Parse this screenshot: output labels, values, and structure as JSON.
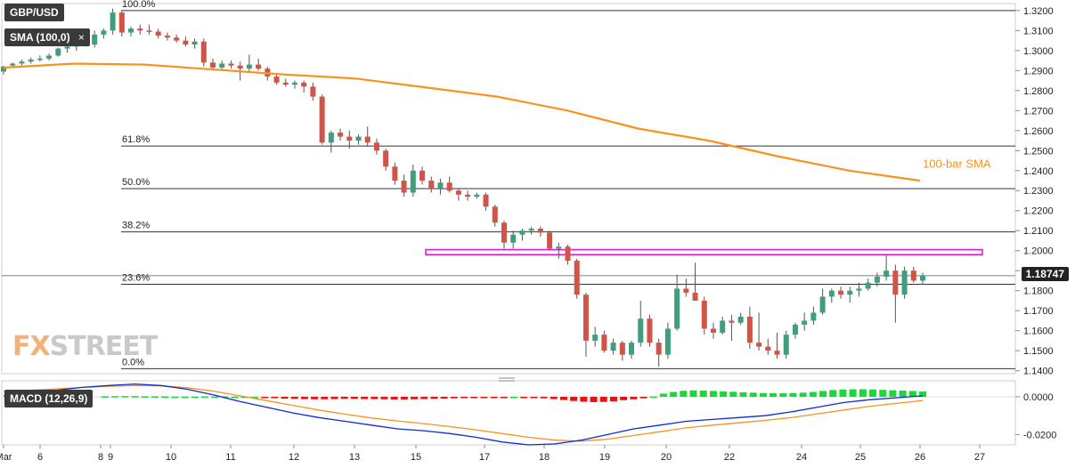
{
  "chart_data": [
    {
      "type": "candlestick",
      "title": "GBP/USD",
      "indicator_label": "SMA (100,0)",
      "annotation": "100-bar SMA",
      "current_price": "1.18747",
      "y_ticks": [
        "1.3200",
        "1.3100",
        "1.3000",
        "1.2900",
        "1.2800",
        "1.2700",
        "1.2600",
        "1.2500",
        "1.2400",
        "1.2300",
        "1.2200",
        "1.2100",
        "1.2000",
        "1.1900",
        "1.1800",
        "1.1700",
        "1.1600",
        "1.1500",
        "1.1400"
      ],
      "ylim": [
        1.1385,
        1.3235
      ],
      "x_ticks": [
        "Mar",
        "6",
        "8",
        "9",
        "10",
        "11",
        "12",
        "13",
        "15",
        "17",
        "18",
        "19",
        "20",
        "22",
        "24",
        "25",
        "26",
        "27"
      ],
      "fib_levels": [
        {
          "label": "100.0%",
          "value": 1.32
        },
        {
          "label": "61.8%",
          "value": 1.2523
        },
        {
          "label": "50.0%",
          "value": 1.231
        },
        {
          "label": "38.2%",
          "value": 1.2094
        },
        {
          "label": "23.6%",
          "value": 1.1832
        },
        {
          "label": "0.0%",
          "value": 1.141
        }
      ],
      "resistance_zone": [
        1.198,
        1.2005
      ],
      "candles": [
        [
          1.2895,
          1.2925,
          1.288,
          1.292
        ],
        [
          1.2925,
          1.294,
          1.2915,
          1.2935
        ],
        [
          1.2935,
          1.2955,
          1.2925,
          1.2945
        ],
        [
          1.2945,
          1.2965,
          1.2935,
          1.2955
        ],
        [
          1.2955,
          1.2975,
          1.2945,
          1.296
        ],
        [
          1.296,
          1.2985,
          1.295,
          1.2975
        ],
        [
          1.2975,
          1.3015,
          1.297,
          1.301
        ],
        [
          1.301,
          1.304,
          1.299,
          1.302
        ],
        [
          1.302,
          1.306,
          1.3,
          1.305
        ],
        [
          1.305,
          1.307,
          1.302,
          1.303
        ],
        [
          1.303,
          1.31,
          1.3015,
          1.308
        ],
        [
          1.308,
          1.311,
          1.306,
          1.31
        ],
        [
          1.31,
          1.321,
          1.308,
          1.319
        ],
        [
          1.319,
          1.32,
          1.307,
          1.309
        ],
        [
          1.309,
          1.312,
          1.307,
          1.311
        ],
        [
          1.311,
          1.313,
          1.308,
          1.31
        ],
        [
          1.31,
          1.313,
          1.308,
          1.3095
        ],
        [
          1.3095,
          1.311,
          1.306,
          1.3075
        ],
        [
          1.3075,
          1.309,
          1.305,
          1.3065
        ],
        [
          1.3065,
          1.308,
          1.304,
          1.305
        ],
        [
          1.305,
          1.307,
          1.302,
          1.303
        ],
        [
          1.303,
          1.306,
          1.301,
          1.3045
        ],
        [
          1.3045,
          1.306,
          1.292,
          1.294
        ],
        [
          1.294,
          1.296,
          1.29,
          1.2915
        ],
        [
          1.2915,
          1.295,
          1.29,
          1.2935
        ],
        [
          1.2935,
          1.295,
          1.291,
          1.2925
        ],
        [
          1.2925,
          1.2945,
          1.285,
          1.291
        ],
        [
          1.291,
          1.298,
          1.289,
          1.293
        ],
        [
          1.293,
          1.296,
          1.29,
          1.291
        ],
        [
          1.291,
          1.292,
          1.285,
          1.287
        ],
        [
          1.287,
          1.288,
          1.283,
          1.284
        ],
        [
          1.284,
          1.286,
          1.282,
          1.283
        ],
        [
          1.283,
          1.285,
          1.281,
          1.284
        ],
        [
          1.284,
          1.285,
          1.279,
          1.282
        ],
        [
          1.282,
          1.284,
          1.275,
          1.277
        ],
        [
          1.277,
          1.278,
          1.253,
          1.254
        ],
        [
          1.254,
          1.26,
          1.249,
          1.259
        ],
        [
          1.259,
          1.261,
          1.255,
          1.257
        ],
        [
          1.257,
          1.26,
          1.251,
          1.255
        ],
        [
          1.255,
          1.258,
          1.253,
          1.257
        ],
        [
          1.257,
          1.262,
          1.252,
          1.254
        ],
        [
          1.254,
          1.256,
          1.248,
          1.25
        ],
        [
          1.25,
          1.251,
          1.24,
          1.242
        ],
        [
          1.242,
          1.244,
          1.233,
          1.235
        ],
        [
          1.235,
          1.238,
          1.227,
          1.229
        ],
        [
          1.229,
          1.243,
          1.227,
          1.24
        ],
        [
          1.24,
          1.242,
          1.233,
          1.235
        ],
        [
          1.235,
          1.237,
          1.229,
          1.231
        ],
        [
          1.231,
          1.236,
          1.228,
          1.234
        ],
        [
          1.234,
          1.237,
          1.229,
          1.23
        ],
        [
          1.23,
          1.231,
          1.225,
          1.228
        ],
        [
          1.228,
          1.23,
          1.225,
          1.227
        ],
        [
          1.227,
          1.229,
          1.226,
          1.228
        ],
        [
          1.228,
          1.229,
          1.22,
          1.222
        ],
        [
          1.222,
          1.223,
          1.212,
          1.214
        ],
        [
          1.214,
          1.215,
          1.201,
          1.204
        ],
        [
          1.204,
          1.21,
          1.201,
          1.208
        ],
        [
          1.208,
          1.211,
          1.205,
          1.21
        ],
        [
          1.21,
          1.212,
          1.208,
          1.211
        ],
        [
          1.211,
          1.212,
          1.207,
          1.209
        ],
        [
          1.209,
          1.21,
          1.2,
          1.201
        ],
        [
          1.201,
          1.204,
          1.196,
          1.202
        ],
        [
          1.202,
          1.203,
          1.193,
          1.195
        ],
        [
          1.195,
          1.196,
          1.176,
          1.178
        ],
        [
          1.178,
          1.179,
          1.147,
          1.155
        ],
        [
          1.155,
          1.162,
          1.152,
          1.158
        ],
        [
          1.158,
          1.16,
          1.149,
          1.15
        ],
        [
          1.15,
          1.156,
          1.148,
          1.154
        ],
        [
          1.154,
          1.155,
          1.145,
          1.148
        ],
        [
          1.148,
          1.155,
          1.146,
          1.154
        ],
        [
          1.154,
          1.175,
          1.152,
          1.166
        ],
        [
          1.166,
          1.168,
          1.152,
          1.154
        ],
        [
          1.154,
          1.156,
          1.142,
          1.148
        ],
        [
          1.148,
          1.164,
          1.146,
          1.161
        ],
        [
          1.161,
          1.188,
          1.16,
          1.181
        ],
        [
          1.181,
          1.186,
          1.177,
          1.179
        ],
        [
          1.179,
          1.194,
          1.175,
          1.175
        ],
        [
          1.175,
          1.177,
          1.158,
          1.161
        ],
        [
          1.161,
          1.164,
          1.156,
          1.159
        ],
        [
          1.159,
          1.167,
          1.158,
          1.165
        ],
        [
          1.165,
          1.168,
          1.155,
          1.164
        ],
        [
          1.164,
          1.169,
          1.163,
          1.167
        ],
        [
          1.167,
          1.172,
          1.151,
          1.154
        ],
        [
          1.154,
          1.169,
          1.15,
          1.152
        ],
        [
          1.152,
          1.156,
          1.148,
          1.15
        ],
        [
          1.15,
          1.159,
          1.146,
          1.148
        ],
        [
          1.148,
          1.16,
          1.146,
          1.158
        ],
        [
          1.158,
          1.164,
          1.156,
          1.163
        ],
        [
          1.163,
          1.169,
          1.16,
          1.165
        ],
        [
          1.165,
          1.172,
          1.163,
          1.169
        ],
        [
          1.169,
          1.181,
          1.168,
          1.177
        ],
        [
          1.177,
          1.181,
          1.174,
          1.18
        ],
        [
          1.18,
          1.182,
          1.176,
          1.178
        ],
        [
          1.178,
          1.182,
          1.174,
          1.18
        ],
        [
          1.18,
          1.184,
          1.177,
          1.181
        ],
        [
          1.181,
          1.186,
          1.18,
          1.184
        ],
        [
          1.184,
          1.189,
          1.182,
          1.187
        ],
        [
          1.187,
          1.198,
          1.185,
          1.19
        ],
        [
          1.19,
          1.193,
          1.164,
          1.178
        ],
        [
          1.178,
          1.192,
          1.176,
          1.19
        ],
        [
          1.19,
          1.192,
          1.184,
          1.185
        ],
        [
          1.185,
          1.189,
          1.183,
          1.1875
        ]
      ],
      "sma": [
        [
          0,
          1.2915
        ],
        [
          20,
          1.2935
        ],
        [
          40,
          1.293
        ],
        [
          60,
          1.2905
        ],
        [
          80,
          1.288
        ],
        [
          100,
          1.286
        ],
        [
          120,
          1.2815
        ],
        [
          140,
          1.277
        ],
        [
          160,
          1.27
        ],
        [
          180,
          1.261
        ],
        [
          200,
          1.255
        ],
        [
          220,
          1.247
        ],
        [
          240,
          1.24
        ],
        [
          260,
          1.235
        ]
      ]
    },
    {
      "type": "macd",
      "title": "MACD (12,26,9)",
      "y_ticks": [
        "0.0000",
        "-0.0200"
      ],
      "ylim": [
        -0.0255,
        0.0085
      ],
      "histogram": [
        0.0003,
        0.0004,
        0.0004,
        0.0004,
        0.0003,
        0.0003,
        0.0002,
        0.0001,
        0.0001,
        0.0001,
        0.0002,
        0.0002,
        0.0002,
        0.0001,
        0.0001,
        0.0,
        -0.0003,
        -0.0006,
        -0.001,
        -0.0011,
        -0.0012,
        -0.0013,
        -0.0013,
        -0.0012,
        -0.0011,
        -0.0011,
        -0.0012,
        -0.0012,
        -0.0013,
        -0.0014,
        -0.0014,
        -0.0013,
        -0.0012,
        -0.0011,
        -0.001,
        -0.0008,
        -0.0006,
        -0.0004,
        -0.0003,
        -0.0002,
        -0.0001,
        0.0,
        -0.0002,
        -0.0004,
        -0.0008,
        -0.0012,
        -0.0017,
        -0.0022,
        -0.0026,
        -0.0028,
        -0.0027,
        -0.0024,
        -0.0018,
        -0.0013,
        -0.0008,
        0.0002,
        0.0017,
        0.0026,
        0.0032,
        0.0034,
        0.0033,
        0.0031,
        0.0029,
        0.0027,
        0.0024,
        0.0022,
        0.002,
        0.0019,
        0.0019,
        0.002,
        0.0022,
        0.0026,
        0.0031,
        0.0036,
        0.0039,
        0.004,
        0.004,
        0.0039,
        0.0037,
        0.0035,
        0.0033,
        0.0031,
        0.0028
      ],
      "macd_line": [
        0.0005,
        0.002,
        0.0035,
        0.005,
        0.006,
        0.0068,
        0.006,
        0.004,
        0.001,
        -0.0025,
        -0.0055,
        -0.0085,
        -0.011,
        -0.013,
        -0.015,
        -0.017,
        -0.018,
        -0.0195,
        -0.0215,
        -0.024,
        -0.0255,
        -0.025,
        -0.023,
        -0.02,
        -0.017,
        -0.015,
        -0.013,
        -0.012,
        -0.011,
        -0.01,
        -0.008,
        -0.0055,
        -0.003,
        -0.0015,
        -0.0005,
        0.0005
      ],
      "signal_line": [
        0.003,
        0.0035,
        0.0042,
        0.005,
        0.0056,
        0.006,
        0.0058,
        0.0048,
        0.003,
        0.0005,
        -0.002,
        -0.0045,
        -0.007,
        -0.0092,
        -0.0112,
        -0.0128,
        -0.0142,
        -0.0158,
        -0.0175,
        -0.0195,
        -0.0215,
        -0.023,
        -0.0235,
        -0.0225,
        -0.0205,
        -0.0185,
        -0.0165,
        -0.015,
        -0.0138,
        -0.0125,
        -0.011,
        -0.009,
        -0.007,
        -0.005,
        -0.0035,
        -0.002
      ]
    }
  ],
  "colors": {
    "up": "#3f9f7d",
    "down": "#d25448",
    "sma": "#f7931e",
    "zone": "#e61bd6",
    "macd": "#0a2bd8",
    "signal": "#f7931e",
    "hist_up": "#18d83c",
    "hist_down": "#ee1010"
  }
}
